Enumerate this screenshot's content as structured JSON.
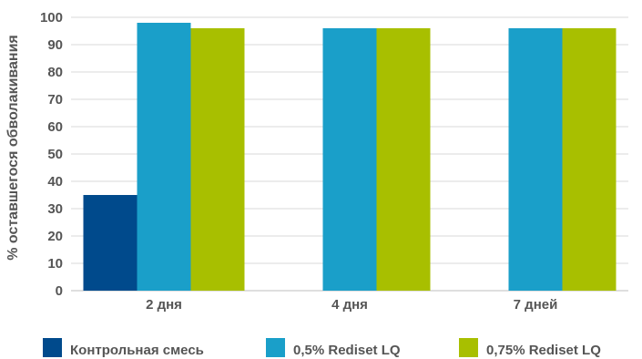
{
  "chart_data": {
    "type": "bar",
    "title": "",
    "xlabel": "",
    "ylabel": "% оставшегося обволакивания",
    "ylim": [
      0,
      100
    ],
    "yticks": [
      0,
      10,
      20,
      30,
      40,
      50,
      60,
      70,
      80,
      90,
      100
    ],
    "grid": true,
    "legend_position": "bottom",
    "categories": [
      "2 дня",
      "4 дня",
      "7 дней"
    ],
    "series": [
      {
        "name": "Контрольная смесь",
        "color": "#004a8c",
        "values": [
          35,
          null,
          null
        ]
      },
      {
        "name": "0,5% Rediset LQ",
        "color": "#1a9fc9",
        "values": [
          98,
          96,
          96
        ]
      },
      {
        "name": "0,75% Rediset LQ",
        "color": "#a8bf00",
        "values": [
          96,
          96,
          96
        ]
      }
    ]
  }
}
